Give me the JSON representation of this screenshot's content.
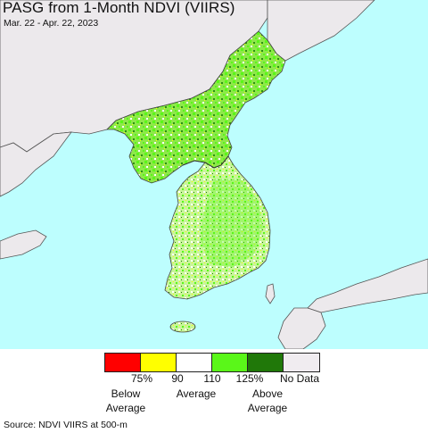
{
  "map": {
    "title": "PASG from 1-Month NDVI (VIIRS)",
    "date_range": "Mar. 22 - Apr. 22, 2023",
    "colors": {
      "sea": "#bdfefe",
      "land_other": "#ece9ec",
      "below": "#ff0000",
      "slightly_below": "#ffff00",
      "average": "#ffffff",
      "slightly_above": "#5af719",
      "above": "#207809",
      "no_data": "#ece9ec"
    }
  },
  "legend": {
    "classes": [
      {
        "name": "below-75",
        "color": "#ff0000"
      },
      {
        "name": "75-90",
        "color": "#ffff00"
      },
      {
        "name": "90-110",
        "color": "#ffffff"
      },
      {
        "name": "110-125",
        "color": "#5af719"
      },
      {
        "name": "above-125",
        "color": "#207809"
      },
      {
        "name": "no-data",
        "color": "#f0ecf0"
      }
    ],
    "ticks": [
      "75%",
      "90",
      "110",
      "125%"
    ],
    "no_data_label": "No Data",
    "below_label": "Below\nAverage",
    "average_label": "Average",
    "above_label": "Above\nAverage"
  },
  "source": "Source: NDVI VIIRS at 500-m"
}
